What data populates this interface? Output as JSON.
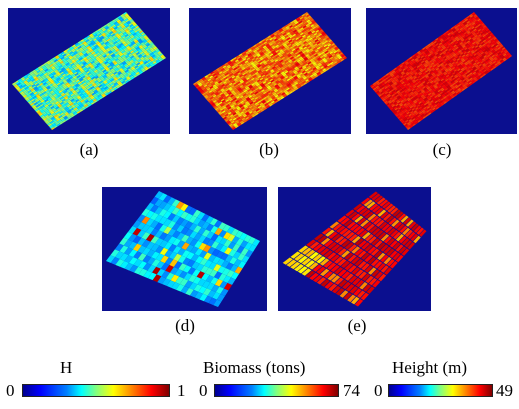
{
  "panels": [
    {
      "id": "a",
      "caption": "(a)",
      "style": "mixed"
    },
    {
      "id": "b",
      "caption": "(b)",
      "style": "orange"
    },
    {
      "id": "c",
      "caption": "(c)",
      "style": "red"
    },
    {
      "id": "d",
      "caption": "(d)",
      "style": "cells-blue"
    },
    {
      "id": "e",
      "caption": "(e)",
      "style": "cells-red"
    }
  ],
  "colorbars": [
    {
      "title": "H",
      "min": "0",
      "max": "1"
    },
    {
      "title": "Biomass (tons)",
      "min": "0",
      "max": "74"
    },
    {
      "title": "Height (m)",
      "min": "0",
      "max": "49"
    }
  ],
  "colors": {
    "background": "#0b0f8f"
  }
}
